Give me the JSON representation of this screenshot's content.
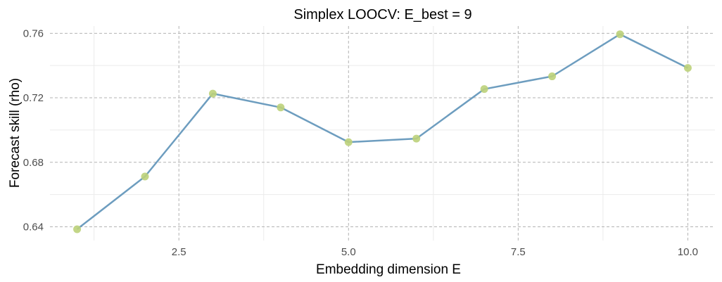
{
  "chart_data": {
    "type": "line",
    "title": "Simplex LOOCV: E_best = 9",
    "xlabel": "Embedding dimension E",
    "ylabel": "Forecast skill (rho)",
    "xlim": [
      0.6,
      10.4
    ],
    "ylim": [
      0.6315,
      0.7645
    ],
    "x_ticks": [
      2.5,
      5.0,
      7.5,
      10.0
    ],
    "x_tick_labels": [
      "2.5",
      "5.0",
      "7.5",
      "10.0"
    ],
    "x_minor_ticks": [
      1.25,
      3.75,
      6.25,
      8.75
    ],
    "y_ticks": [
      0.64,
      0.68,
      0.72,
      0.76
    ],
    "y_tick_labels": [
      "0.64",
      "0.68",
      "0.72",
      "0.76"
    ],
    "y_minor_ticks": [
      0.66,
      0.7,
      0.74
    ],
    "grid": true,
    "series": [
      {
        "x": [
          1,
          2,
          3,
          4,
          5,
          6,
          7,
          8,
          9,
          10
        ],
        "values": [
          0.6385,
          0.6712,
          0.7226,
          0.714,
          0.6925,
          0.6947,
          0.7254,
          0.7333,
          0.7594,
          0.7385
        ],
        "line_color": "#6d9dbf",
        "point_color": "#bcd27a"
      }
    ]
  }
}
